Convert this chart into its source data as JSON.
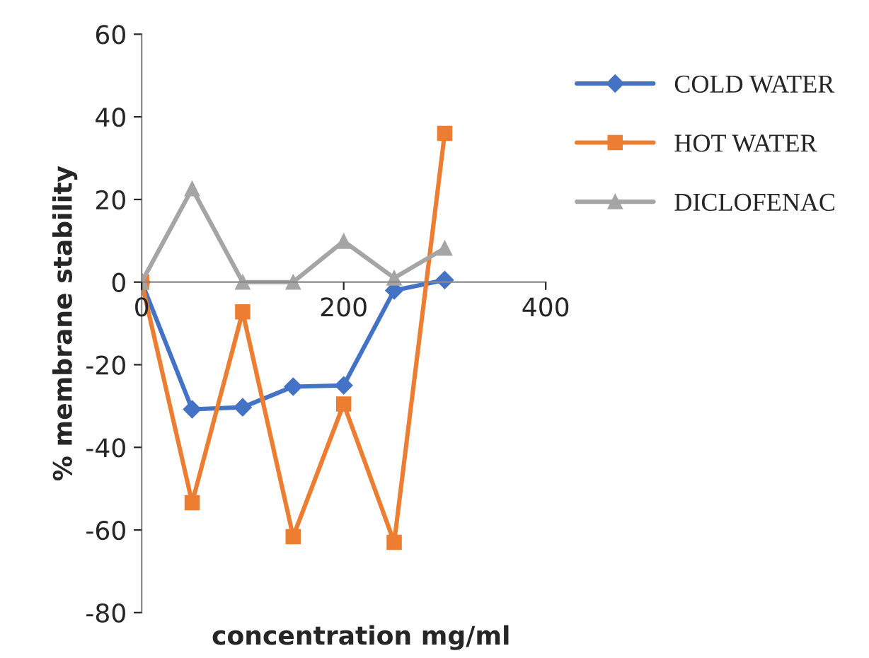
{
  "chart_data": {
    "type": "line",
    "xlabel": "concentration mg/ml",
    "ylabel": "% membrane stability",
    "x": [
      0,
      50,
      100,
      150,
      200,
      250,
      300
    ],
    "xlim": [
      0,
      400
    ],
    "xticks": [
      0,
      200,
      400
    ],
    "ylim": [
      -80,
      60
    ],
    "yticks": [
      -80,
      -60,
      -40,
      -20,
      0,
      20,
      40,
      60
    ],
    "grid": false,
    "legend": "right",
    "series": [
      {
        "name": "COLD WATER",
        "color": "#4472c4",
        "marker": "diamond",
        "values": [
          0,
          -30.8,
          -30.3,
          -25.3,
          -25,
          -2,
          0.5
        ]
      },
      {
        "name": "HOT WATER",
        "color": "#ed7d31",
        "marker": "square",
        "values": [
          0,
          -53.4,
          -7.2,
          -61.6,
          -29.5,
          -63,
          36
        ]
      },
      {
        "name": "DICLOFENAC",
        "color": "#a5a5a5",
        "marker": "triangle",
        "values": [
          0,
          22.6,
          0,
          0,
          9.9,
          1,
          8.2
        ]
      }
    ]
  }
}
